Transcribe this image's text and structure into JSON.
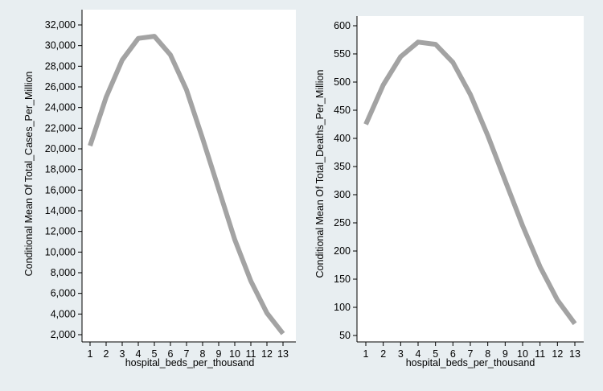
{
  "chart_data": [
    {
      "type": "line",
      "title": "",
      "xlabel": "hospital_beds_per_thousand",
      "ylabel": "Conditional Mean Of Total_Cases_Per_Million",
      "x": [
        1,
        2,
        3,
        4,
        5,
        6,
        7,
        8,
        9,
        10,
        11,
        12,
        13
      ],
      "series": [
        {
          "values": [
            20300,
            25000,
            28600,
            30700,
            30900,
            29100,
            25700,
            21000,
            16100,
            11200,
            7200,
            4100,
            2100
          ]
        }
      ],
      "xlim": [
        1,
        13
      ],
      "ylim": [
        2000,
        32000
      ],
      "yticks": [
        2000,
        4000,
        6000,
        8000,
        10000,
        12000,
        14000,
        16000,
        18000,
        20000,
        22000,
        24000,
        26000,
        28000,
        30000,
        32000
      ],
      "ytick_labels": [
        "2,000",
        "4,000",
        "6,000",
        "8,000",
        "10,000",
        "12,000",
        "14,000",
        "16,000",
        "18,000",
        "20,000",
        "22,000",
        "24,000",
        "26,000",
        "28,000",
        "30,000",
        "32,000"
      ],
      "xticks": [
        1,
        2,
        3,
        4,
        5,
        6,
        7,
        8,
        9,
        10,
        11,
        12,
        13
      ],
      "xtick_labels": [
        "1",
        "2",
        "3",
        "4",
        "5",
        "6",
        "7",
        "8",
        "9",
        "10",
        "11",
        "12",
        "13"
      ],
      "grid": false,
      "line_color": "#a3a3a3"
    },
    {
      "type": "line",
      "title": "",
      "xlabel": "hospital_beds_per_thousand",
      "ylabel": "Conditional Mean Of Total_Deaths_Per_Million",
      "x": [
        1,
        2,
        3,
        4,
        5,
        6,
        7,
        8,
        9,
        10,
        11,
        12,
        13
      ],
      "series": [
        {
          "values": [
            425,
            495,
            545,
            571,
            567,
            535,
            478,
            405,
            325,
            245,
            172,
            113,
            71
          ]
        }
      ],
      "xlim": [
        1,
        13
      ],
      "ylim": [
        50,
        600
      ],
      "yticks": [
        50,
        100,
        150,
        200,
        250,
        300,
        350,
        400,
        450,
        500,
        550,
        600
      ],
      "ytick_labels": [
        "50",
        "100",
        "150",
        "200",
        "250",
        "300",
        "350",
        "400",
        "450",
        "500",
        "550",
        "600"
      ],
      "xticks": [
        1,
        2,
        3,
        4,
        5,
        6,
        7,
        8,
        9,
        10,
        11,
        12,
        13
      ],
      "xtick_labels": [
        "1",
        "2",
        "3",
        "4",
        "5",
        "6",
        "7",
        "8",
        "9",
        "10",
        "11",
        "12",
        "13"
      ],
      "grid": false,
      "line_color": "#a3a3a3"
    }
  ],
  "colors": {
    "figure_background": "#e8eef1",
    "plot_background": "#ffffff",
    "axis": "#000000",
    "line": "#a3a3a3"
  }
}
